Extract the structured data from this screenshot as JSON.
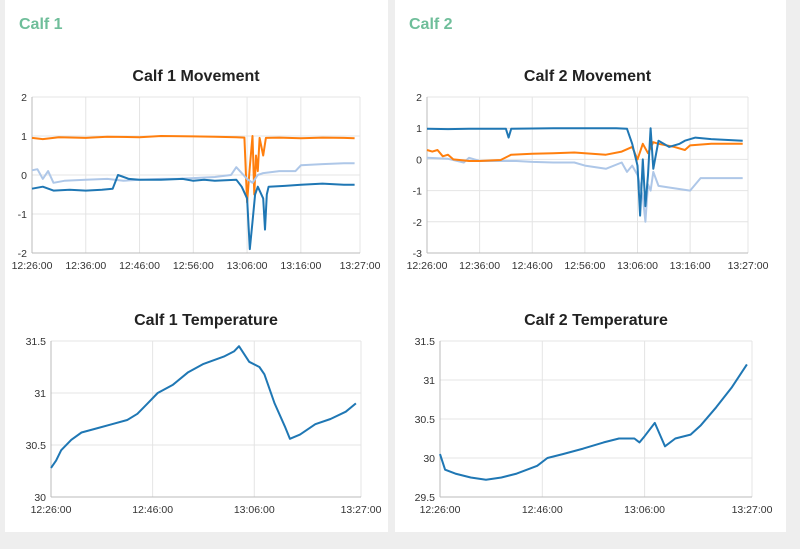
{
  "panels": [
    {
      "title": "Calf 1"
    },
    {
      "title": "Calf 2"
    }
  ],
  "colors": {
    "panel_title": "#6fbe9a",
    "series_dark_blue": "#1f77b4",
    "series_orange": "#ff7f0e",
    "series_light_blue": "#aec7e8"
  },
  "chart_data": [
    {
      "id": "calf1-movement",
      "type": "line",
      "title": "Calf 1 Movement",
      "xlabel": "",
      "ylabel": "",
      "xlim": [
        "12:26:00",
        "13:27:00"
      ],
      "ylim": [
        -2,
        2
      ],
      "x_ticks": [
        "12:26:00",
        "12:36:00",
        "12:46:00",
        "12:56:00",
        "13:06:00",
        "13:16:00",
        "13:27:00"
      ],
      "y_ticks": [
        -2,
        -1,
        0,
        1,
        2
      ],
      "grid": true,
      "series": [
        {
          "color": "#ff7f0e",
          "points": [
            [
              "12:26:00",
              0.95
            ],
            [
              "12:28:00",
              0.92
            ],
            [
              "12:31:00",
              0.97
            ],
            [
              "12:36:00",
              0.95
            ],
            [
              "12:40:00",
              0.98
            ],
            [
              "12:46:00",
              0.97
            ],
            [
              "12:50:00",
              1.0
            ],
            [
              "12:56:00",
              0.99
            ],
            [
              "13:00:00",
              0.98
            ],
            [
              "13:04:00",
              0.97
            ],
            [
              "13:05:30",
              0.96
            ],
            [
              "13:06:00",
              -0.7
            ],
            [
              "13:06:30",
              0.2
            ],
            [
              "13:07:00",
              1.0
            ],
            [
              "13:07:20",
              -0.5
            ],
            [
              "13:07:40",
              0.5
            ],
            [
              "13:08:00",
              0.1
            ],
            [
              "13:08:20",
              0.95
            ],
            [
              "13:09:00",
              0.5
            ],
            [
              "13:09:30",
              0.95
            ],
            [
              "13:12:00",
              0.96
            ],
            [
              "13:16:00",
              0.94
            ],
            [
              "13:20:00",
              0.96
            ],
            [
              "13:24:00",
              0.95
            ],
            [
              "13:26:00",
              0.94
            ]
          ]
        },
        {
          "color": "#aec7e8",
          "points": [
            [
              "12:26:00",
              0.12
            ],
            [
              "12:27:00",
              0.15
            ],
            [
              "12:28:00",
              -0.1
            ],
            [
              "12:29:00",
              0.1
            ],
            [
              "12:30:00",
              -0.2
            ],
            [
              "12:32:00",
              -0.15
            ],
            [
              "12:36:00",
              -0.12
            ],
            [
              "12:40:00",
              -0.1
            ],
            [
              "12:43:00",
              -0.15
            ],
            [
              "12:46:00",
              -0.12
            ],
            [
              "12:50:00",
              -0.1
            ],
            [
              "12:53:00",
              -0.1
            ],
            [
              "12:56:00",
              -0.08
            ],
            [
              "13:00:00",
              -0.05
            ],
            [
              "13:03:00",
              0.0
            ],
            [
              "13:04:00",
              0.2
            ],
            [
              "13:05:00",
              0.05
            ],
            [
              "13:06:00",
              -0.1
            ],
            [
              "13:07:00",
              -0.2
            ],
            [
              "13:08:00",
              0.0
            ],
            [
              "13:09:00",
              0.05
            ],
            [
              "13:12:00",
              0.1
            ],
            [
              "13:15:00",
              0.1
            ],
            [
              "13:16:00",
              0.25
            ],
            [
              "13:20:00",
              0.28
            ],
            [
              "13:24:00",
              0.3
            ],
            [
              "13:26:00",
              0.3
            ]
          ]
        },
        {
          "color": "#1f77b4",
          "points": [
            [
              "12:26:00",
              -0.35
            ],
            [
              "12:28:00",
              -0.3
            ],
            [
              "12:30:00",
              -0.4
            ],
            [
              "12:33:00",
              -0.38
            ],
            [
              "12:36:00",
              -0.4
            ],
            [
              "12:39:00",
              -0.38
            ],
            [
              "12:41:00",
              -0.35
            ],
            [
              "12:42:00",
              0.0
            ],
            [
              "12:44:00",
              -0.1
            ],
            [
              "12:46:00",
              -0.12
            ],
            [
              "12:50:00",
              -0.12
            ],
            [
              "12:54:00",
              -0.1
            ],
            [
              "12:56:00",
              -0.15
            ],
            [
              "12:58:00",
              -0.12
            ],
            [
              "13:00:00",
              -0.15
            ],
            [
              "13:04:00",
              -0.12
            ],
            [
              "13:05:00",
              -0.3
            ],
            [
              "13:06:00",
              -0.6
            ],
            [
              "13:06:30",
              -1.9
            ],
            [
              "13:07:00",
              -1.2
            ],
            [
              "13:07:30",
              -0.5
            ],
            [
              "13:08:00",
              -0.3
            ],
            [
              "13:09:00",
              -0.6
            ],
            [
              "13:09:20",
              -1.4
            ],
            [
              "13:09:40",
              -0.5
            ],
            [
              "13:10:00",
              -0.3
            ],
            [
              "13:13:00",
              -0.28
            ],
            [
              "13:16:00",
              -0.25
            ],
            [
              "13:20:00",
              -0.22
            ],
            [
              "13:24:00",
              -0.25
            ],
            [
              "13:26:00",
              -0.25
            ]
          ]
        }
      ]
    },
    {
      "id": "calf2-movement",
      "type": "line",
      "title": "Calf 2 Movement",
      "xlabel": "",
      "ylabel": "",
      "xlim": [
        "12:26:00",
        "13:27:00"
      ],
      "ylim": [
        -3,
        2
      ],
      "x_ticks": [
        "12:26:00",
        "12:36:00",
        "12:46:00",
        "12:56:00",
        "13:06:00",
        "13:16:00",
        "13:27:00"
      ],
      "y_ticks": [
        -3,
        -2,
        -1,
        0,
        1,
        2
      ],
      "grid": true,
      "series": [
        {
          "color": "#aec7e8",
          "points": [
            [
              "12:26:00",
              0.05
            ],
            [
              "12:30:00",
              0.02
            ],
            [
              "12:33:00",
              -0.1
            ],
            [
              "12:34:00",
              0.05
            ],
            [
              "12:36:00",
              -0.05
            ],
            [
              "12:40:00",
              -0.05
            ],
            [
              "12:43:00",
              -0.05
            ],
            [
              "12:46:00",
              -0.08
            ],
            [
              "12:50:00",
              -0.1
            ],
            [
              "12:54:00",
              -0.1
            ],
            [
              "12:56:00",
              -0.2
            ],
            [
              "13:00:00",
              -0.3
            ],
            [
              "13:03:00",
              -0.1
            ],
            [
              "13:04:00",
              -0.4
            ],
            [
              "13:05:00",
              -0.2
            ],
            [
              "13:06:00",
              -0.5
            ],
            [
              "13:07:00",
              -1.2
            ],
            [
              "13:07:30",
              -2.0
            ],
            [
              "13:08:00",
              -0.8
            ],
            [
              "13:08:30",
              -1.0
            ],
            [
              "13:09:00",
              -0.4
            ],
            [
              "13:10:00",
              -0.85
            ],
            [
              "13:12:00",
              -0.9
            ],
            [
              "13:16:00",
              -1.0
            ],
            [
              "13:18:00",
              -0.6
            ],
            [
              "13:22:00",
              -0.6
            ],
            [
              "13:26:00",
              -0.6
            ]
          ]
        },
        {
          "color": "#ff7f0e",
          "points": [
            [
              "12:26:00",
              0.3
            ],
            [
              "12:27:00",
              0.25
            ],
            [
              "12:28:00",
              0.3
            ],
            [
              "12:29:00",
              0.1
            ],
            [
              "12:30:00",
              0.15
            ],
            [
              "12:31:00",
              0.0
            ],
            [
              "12:34:00",
              -0.05
            ],
            [
              "12:36:00",
              -0.05
            ],
            [
              "12:40:00",
              -0.02
            ],
            [
              "12:42:00",
              0.15
            ],
            [
              "12:46:00",
              0.18
            ],
            [
              "12:50:00",
              0.2
            ],
            [
              "12:54:00",
              0.22
            ],
            [
              "12:56:00",
              0.2
            ],
            [
              "13:00:00",
              0.15
            ],
            [
              "13:03:00",
              0.25
            ],
            [
              "13:05:00",
              0.4
            ],
            [
              "13:06:00",
              0.0
            ],
            [
              "13:07:00",
              0.5
            ],
            [
              "13:08:00",
              0.2
            ],
            [
              "13:09:00",
              0.55
            ],
            [
              "13:10:00",
              0.5
            ],
            [
              "13:13:00",
              0.4
            ],
            [
              "13:15:00",
              0.3
            ],
            [
              "13:16:00",
              0.45
            ],
            [
              "13:20:00",
              0.5
            ],
            [
              "13:26:00",
              0.5
            ]
          ]
        },
        {
          "color": "#1f77b4",
          "points": [
            [
              "12:26:00",
              0.98
            ],
            [
              "12:30:00",
              0.97
            ],
            [
              "12:34:00",
              0.98
            ],
            [
              "12:41:00",
              0.98
            ],
            [
              "12:41:30",
              0.7
            ],
            [
              "12:42:00",
              0.98
            ],
            [
              "12:50:00",
              1.0
            ],
            [
              "12:56:00",
              1.0
            ],
            [
              "13:02:00",
              1.0
            ],
            [
              "13:04:00",
              0.98
            ],
            [
              "13:05:00",
              0.5
            ],
            [
              "13:06:00",
              -0.2
            ],
            [
              "13:06:30",
              -1.8
            ],
            [
              "13:07:00",
              0.0
            ],
            [
              "13:07:30",
              -1.5
            ],
            [
              "13:08:00",
              -0.5
            ],
            [
              "13:08:30",
              1.0
            ],
            [
              "13:09:00",
              -0.3
            ],
            [
              "13:10:00",
              0.6
            ],
            [
              "13:12:00",
              0.4
            ],
            [
              "13:14:00",
              0.5
            ],
            [
              "13:15:00",
              0.6
            ],
            [
              "13:17:00",
              0.7
            ],
            [
              "13:20:00",
              0.65
            ],
            [
              "13:26:00",
              0.6
            ]
          ]
        }
      ]
    },
    {
      "id": "calf1-temperature",
      "type": "line",
      "title": "Calf 1 Temperature",
      "xlabel": "",
      "ylabel": "",
      "xlim": [
        "12:26:00",
        "13:27:00"
      ],
      "ylim": [
        30,
        31.5
      ],
      "x_ticks": [
        "12:26:00",
        "12:46:00",
        "13:06:00",
        "13:27:00"
      ],
      "y_ticks": [
        30,
        30.5,
        31,
        31.5
      ],
      "grid": true,
      "series": [
        {
          "color": "#1f77b4",
          "points": [
            [
              "12:26:00",
              30.28
            ],
            [
              "12:27:00",
              30.35
            ],
            [
              "12:28:00",
              30.45
            ],
            [
              "12:30:00",
              30.55
            ],
            [
              "12:32:00",
              30.62
            ],
            [
              "12:35:00",
              30.66
            ],
            [
              "12:38:00",
              30.7
            ],
            [
              "12:41:00",
              30.74
            ],
            [
              "12:43:00",
              30.8
            ],
            [
              "12:45:00",
              30.9
            ],
            [
              "12:47:00",
              31.0
            ],
            [
              "12:50:00",
              31.08
            ],
            [
              "12:53:00",
              31.2
            ],
            [
              "12:56:00",
              31.28
            ],
            [
              "13:00:00",
              31.35
            ],
            [
              "13:02:00",
              31.4
            ],
            [
              "13:03:00",
              31.45
            ],
            [
              "13:05:00",
              31.3
            ],
            [
              "13:07:00",
              31.25
            ],
            [
              "13:08:00",
              31.18
            ],
            [
              "13:10:00",
              30.9
            ],
            [
              "13:12:00",
              30.68
            ],
            [
              "13:13:00",
              30.56
            ],
            [
              "13:15:00",
              30.6
            ],
            [
              "13:18:00",
              30.7
            ],
            [
              "13:21:00",
              30.75
            ],
            [
              "13:24:00",
              30.82
            ],
            [
              "13:26:00",
              30.9
            ]
          ]
        }
      ]
    },
    {
      "id": "calf2-temperature",
      "type": "line",
      "title": "Calf 2 Temperature",
      "xlabel": "",
      "ylabel": "",
      "xlim": [
        "12:26:00",
        "13:27:00"
      ],
      "ylim": [
        29.5,
        31.5
      ],
      "x_ticks": [
        "12:26:00",
        "12:46:00",
        "13:06:00",
        "13:27:00"
      ],
      "y_ticks": [
        29.5,
        30,
        30.5,
        31,
        31.5
      ],
      "grid": true,
      "series": [
        {
          "color": "#1f77b4",
          "points": [
            [
              "12:26:00",
              30.05
            ],
            [
              "12:27:00",
              29.85
            ],
            [
              "12:29:00",
              29.8
            ],
            [
              "12:32:00",
              29.75
            ],
            [
              "12:35:00",
              29.72
            ],
            [
              "12:38:00",
              29.75
            ],
            [
              "12:41:00",
              29.8
            ],
            [
              "12:43:00",
              29.85
            ],
            [
              "12:45:00",
              29.9
            ],
            [
              "12:47:00",
              30.0
            ],
            [
              "12:50:00",
              30.05
            ],
            [
              "12:54:00",
              30.12
            ],
            [
              "12:58:00",
              30.2
            ],
            [
              "13:01:00",
              30.25
            ],
            [
              "13:04:00",
              30.25
            ],
            [
              "13:05:00",
              30.2
            ],
            [
              "13:06:00",
              30.28
            ],
            [
              "13:08:00",
              30.45
            ],
            [
              "13:09:00",
              30.3
            ],
            [
              "13:10:00",
              30.15
            ],
            [
              "13:12:00",
              30.25
            ],
            [
              "13:15:00",
              30.3
            ],
            [
              "13:17:00",
              30.42
            ],
            [
              "13:20:00",
              30.65
            ],
            [
              "13:23:00",
              30.9
            ],
            [
              "13:25:00",
              31.1
            ],
            [
              "13:26:00",
              31.2
            ]
          ]
        }
      ]
    }
  ]
}
